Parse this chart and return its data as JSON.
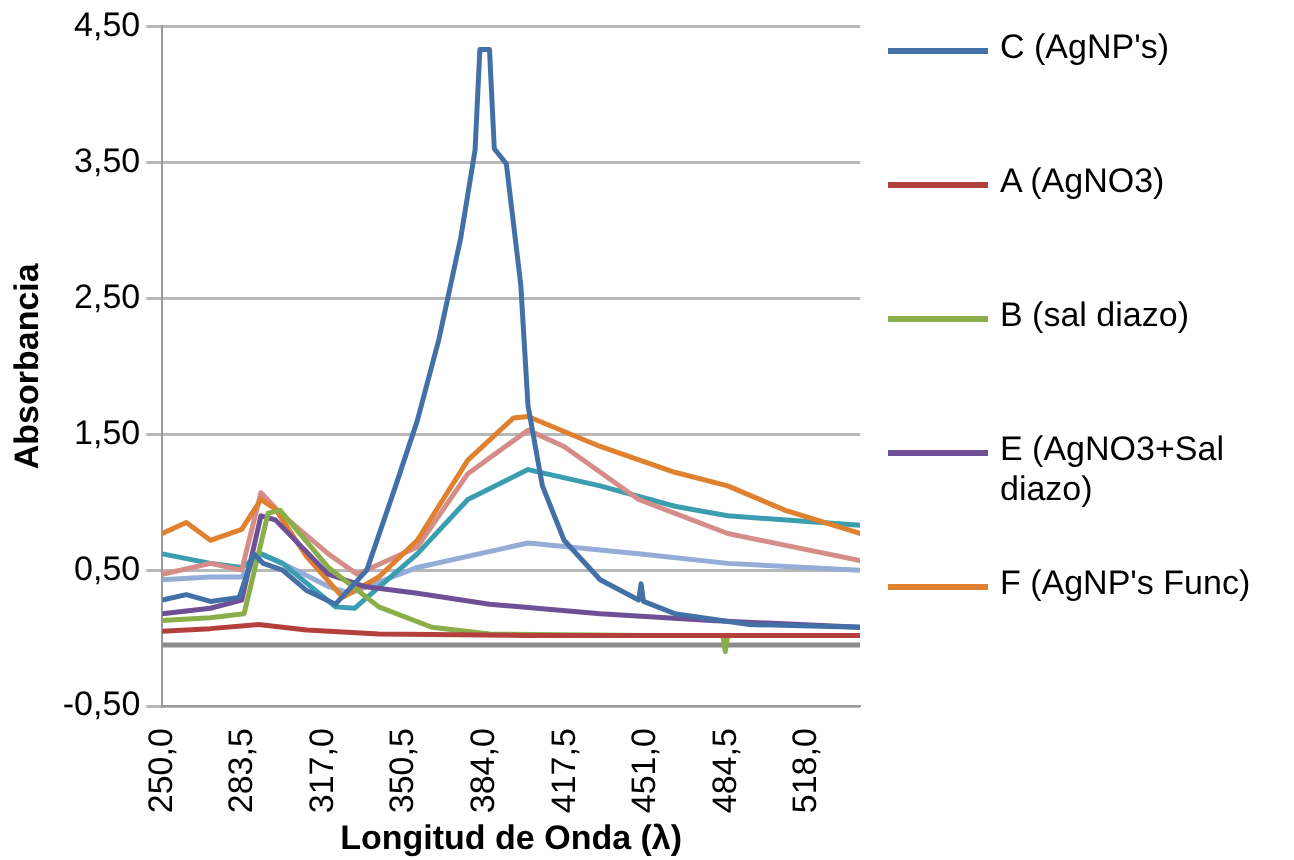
{
  "chart_data": {
    "type": "line",
    "xlabel": "Longitud de Onda (λ)",
    "ylabel": "Absorbancia",
    "xlim": [
      250,
      540
    ],
    "xticks": [
      {
        "value": 250,
        "label": "250,0"
      },
      {
        "value": 283.5,
        "label": "283,5"
      },
      {
        "value": 317,
        "label": "317,0"
      },
      {
        "value": 350.5,
        "label": "350,5"
      },
      {
        "value": 384,
        "label": "384,0"
      },
      {
        "value": 417.5,
        "label": "417,5"
      },
      {
        "value": 451,
        "label": "451,0"
      },
      {
        "value": 484.5,
        "label": "484,5"
      },
      {
        "value": 518,
        "label": "518,0"
      }
    ],
    "ylim": [
      -0.5,
      4.5
    ],
    "yticks": [
      {
        "value": -0.5,
        "label": "-0,50"
      },
      {
        "value": 0.5,
        "label": "0,50"
      },
      {
        "value": 1.5,
        "label": "1,50"
      },
      {
        "value": 2.5,
        "label": "2,50"
      },
      {
        "value": 3.5,
        "label": "3,50"
      },
      {
        "value": 4.5,
        "label": "4,50"
      }
    ],
    "grid": "y",
    "legend": "right",
    "marker": "none",
    "line_style": "solid",
    "series": [
      {
        "name": "C (AgNP's)",
        "color": "#4470a8",
        "x": [
          250,
          260,
          270,
          282,
          288,
          292,
          300,
          310,
          322,
          335,
          347,
          356,
          365,
          374,
          380,
          382,
          386,
          388,
          393,
          399,
          402,
          408,
          417,
          432,
          448,
          449,
          450,
          463,
          494,
          540
        ],
        "values": [
          0.28,
          0.32,
          0.27,
          0.3,
          0.62,
          0.55,
          0.5,
          0.35,
          0.25,
          0.5,
          1.12,
          1.6,
          2.2,
          2.94,
          3.59,
          4.33,
          4.33,
          3.6,
          3.49,
          2.6,
          1.71,
          1.12,
          0.72,
          0.43,
          0.28,
          0.4,
          0.27,
          0.18,
          0.1,
          0.08
        ]
      },
      {
        "name": "A (AgNO3)",
        "color": "#b3403c",
        "x": [
          250,
          270,
          290,
          310,
          340,
          400,
          540
        ],
        "values": [
          0.05,
          0.07,
          0.1,
          0.06,
          0.03,
          0.02,
          0.02
        ]
      },
      {
        "name": "B (sal diazo)",
        "color": "#8aaf4a",
        "x": [
          250,
          270,
          284,
          294,
          299,
          319,
          340,
          362,
          386,
          450,
          483,
          484,
          485,
          540
        ],
        "values": [
          0.13,
          0.15,
          0.18,
          0.92,
          0.94,
          0.52,
          0.23,
          0.08,
          0.03,
          0.02,
          0.02,
          -0.1,
          0.02,
          0.02
        ]
      },
      {
        "name": "E (AgNO3+Sal diazo)",
        "color": "#6f4f96",
        "x": [
          250,
          270,
          283,
          291,
          297,
          319,
          334,
          356,
          386,
          432,
          478,
          540
        ],
        "values": [
          0.18,
          0.22,
          0.28,
          0.9,
          0.87,
          0.47,
          0.38,
          0.33,
          0.25,
          0.18,
          0.13,
          0.08
        ]
      },
      {
        "name": "F (AgNP's Func)",
        "color": "#e0812f",
        "x": [
          250,
          260,
          270,
          283,
          291,
          297,
          310,
          325,
          340,
          356,
          377,
          396,
          402,
          432,
          463,
          485,
          509,
          540
        ],
        "values": [
          0.77,
          0.85,
          0.72,
          0.8,
          1.02,
          0.95,
          0.6,
          0.3,
          0.45,
          0.72,
          1.31,
          1.62,
          1.63,
          1.41,
          1.22,
          1.12,
          0.94,
          0.77
        ]
      },
      {
        "color": "#d58d8a",
        "x": [
          250,
          270,
          283,
          291,
          299,
          319,
          331,
          356,
          377,
          402,
          417,
          448,
          485,
          540
        ],
        "values": [
          0.47,
          0.55,
          0.5,
          1.07,
          0.92,
          0.62,
          0.47,
          0.67,
          1.21,
          1.53,
          1.41,
          1.02,
          0.77,
          0.57
        ]
      },
      {
        "color": "#3a9eb0",
        "x": [
          250,
          270,
          283,
          291,
          300,
          322,
          330,
          356,
          377,
          402,
          432,
          463,
          485,
          540
        ],
        "values": [
          0.62,
          0.55,
          0.52,
          0.62,
          0.55,
          0.23,
          0.22,
          0.62,
          1.02,
          1.24,
          1.12,
          0.97,
          0.9,
          0.83
        ]
      },
      {
        "color": "#95acd6",
        "x": [
          250,
          270,
          283,
          291,
          300,
          319,
          328,
          356,
          402,
          448,
          485,
          540
        ],
        "values": [
          0.43,
          0.45,
          0.45,
          0.62,
          0.55,
          0.38,
          0.33,
          0.52,
          0.7,
          0.62,
          0.55,
          0.5
        ]
      },
      {
        "color": "#8c8c8c",
        "x": [
          250,
          350,
          450,
          540
        ],
        "values": [
          -0.05,
          -0.05,
          -0.05,
          -0.05
        ]
      }
    ]
  }
}
